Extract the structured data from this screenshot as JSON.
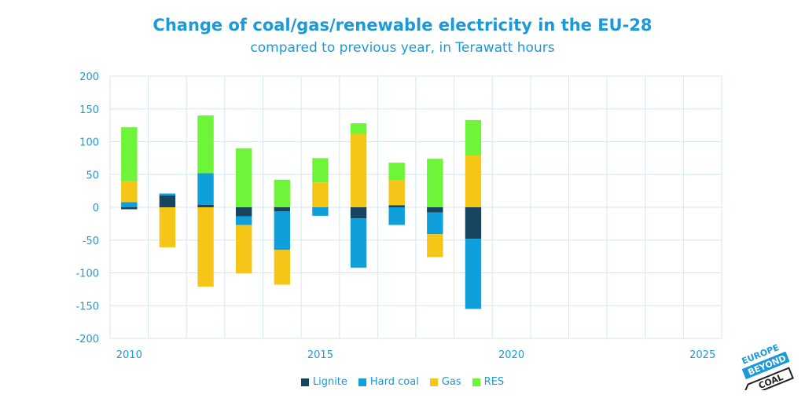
{
  "chart_data": {
    "type": "bar",
    "stacked": true,
    "title": "Change of coal/gas/renewable electricity in the EU-28",
    "subtitle": "compared to previous year, in Terawatt hours",
    "x": [
      2010,
      2011,
      2012,
      2013,
      2014,
      2015,
      2016,
      2017,
      2018,
      2019
    ],
    "xlim": [
      2010,
      2025
    ],
    "xticks": [
      "2010",
      "2015",
      "2020",
      "2025"
    ],
    "ylim": [
      -200,
      200
    ],
    "yticks": [
      "200",
      "150",
      "100",
      "50",
      "0",
      "-50",
      "-100",
      "-150",
      "-200"
    ],
    "grid": true,
    "legend_position": "bottom",
    "series": [
      {
        "name": "Lignite",
        "color": "#17445e",
        "values": [
          -3,
          18,
          4,
          -14,
          -6,
          0,
          -17,
          3,
          -8,
          -48
        ]
      },
      {
        "name": "Hard coal",
        "color": "#0fa0dc",
        "values": [
          8,
          3,
          48,
          -13,
          -59,
          -13,
          -75,
          -27,
          -33,
          -107
        ]
      },
      {
        "name": "Gas",
        "color": "#f5c518",
        "values": [
          32,
          -61,
          -121,
          -74,
          -53,
          38,
          112,
          38,
          -35,
          79
        ]
      },
      {
        "name": "RES",
        "color": "#6ef53a",
        "values": [
          82,
          0,
          88,
          90,
          42,
          37,
          16,
          27,
          74,
          54
        ]
      }
    ]
  },
  "logo": {
    "lines": [
      "EUROPE",
      "BEYOND",
      "COAL"
    ],
    "color": "#1a9ad8"
  }
}
